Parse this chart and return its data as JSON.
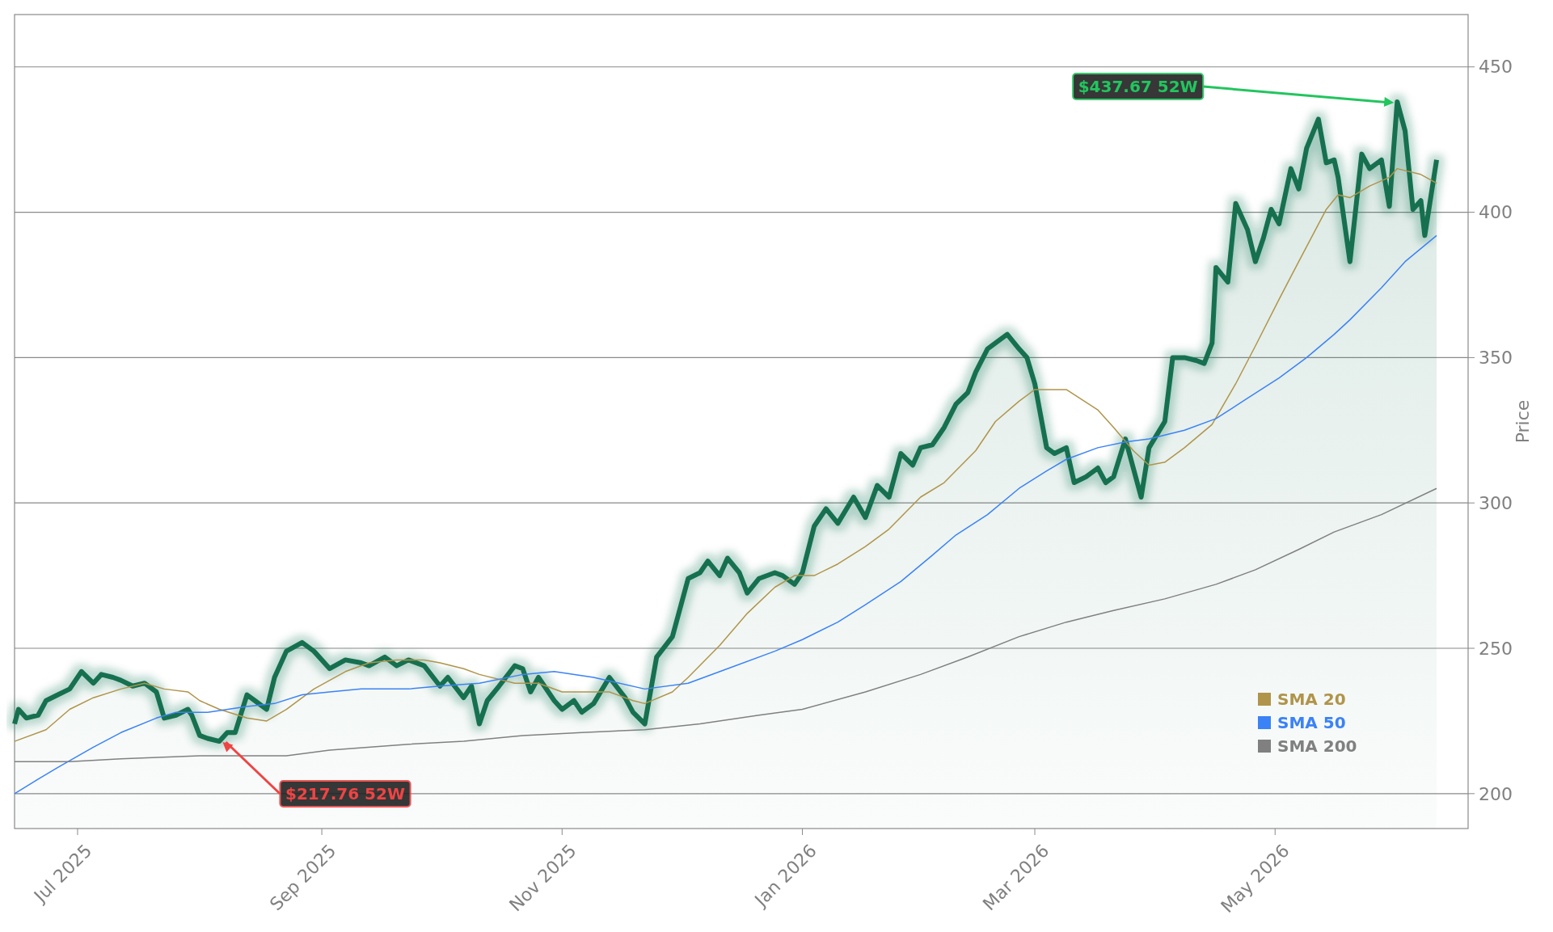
{
  "chart_data": {
    "type": "line",
    "ylabel": "Price",
    "legend": "bottom right",
    "grid": "y",
    "xlim": [
      "2025-06-15",
      "2026-06-19"
    ],
    "ylim": [
      188,
      468
    ],
    "yticks": [
      200,
      250,
      300,
      350,
      400,
      450
    ],
    "xticks": [
      {
        "value": "2025-07-01",
        "label": "Jul 2025"
      },
      {
        "value": "2025-09-01",
        "label": "Sep 2025"
      },
      {
        "value": "2025-11-01",
        "label": "Nov 2025"
      },
      {
        "value": "2026-01-01",
        "label": "Jan 2026"
      },
      {
        "value": "2026-03-01",
        "label": "Mar 2026"
      },
      {
        "value": "2026-05-01",
        "label": "May 2026"
      }
    ],
    "series": [
      {
        "type": "area",
        "color": "#16704f",
        "x": [
          "2025-06-15",
          "2025-06-16",
          "2025-06-18",
          "2025-06-21",
          "2025-06-23",
          "2025-06-26",
          "2025-06-29",
          "2025-07-02",
          "2025-07-05",
          "2025-07-07",
          "2025-07-10",
          "2025-07-12",
          "2025-07-15",
          "2025-07-18",
          "2025-07-21",
          "2025-07-23",
          "2025-07-26",
          "2025-07-29",
          "2025-07-30",
          "2025-08-01",
          "2025-08-03",
          "2025-08-06",
          "2025-08-08",
          "2025-08-10",
          "2025-08-13",
          "2025-08-15",
          "2025-08-18",
          "2025-08-20",
          "2025-08-23",
          "2025-08-27",
          "2025-08-30",
          "2025-09-03",
          "2025-09-07",
          "2025-09-11",
          "2025-09-13",
          "2025-09-17",
          "2025-09-20",
          "2025-09-23",
          "2025-09-27",
          "2025-10-01",
          "2025-10-03",
          "2025-10-07",
          "2025-10-09",
          "2025-10-11",
          "2025-10-13",
          "2025-10-16",
          "2025-10-20",
          "2025-10-22",
          "2025-10-24",
          "2025-10-26",
          "2025-10-30",
          "2025-11-01",
          "2025-11-04",
          "2025-11-06",
          "2025-11-09",
          "2025-11-13",
          "2025-11-17",
          "2025-11-19",
          "2025-11-22",
          "2025-11-25",
          "2025-11-29",
          "2025-12-01",
          "2025-12-03",
          "2025-12-06",
          "2025-12-08",
          "2025-12-11",
          "2025-12-13",
          "2025-12-16",
          "2025-12-18",
          "2025-12-21",
          "2025-12-25",
          "2025-12-27",
          "2025-12-30",
          "2026-01-01",
          "2026-01-04",
          "2026-01-07",
          "2026-01-10",
          "2026-01-14",
          "2026-01-17",
          "2026-01-20",
          "2026-01-23",
          "2026-01-26",
          "2026-01-29",
          "2026-01-31",
          "2026-02-03",
          "2026-02-06",
          "2026-02-09",
          "2026-02-12",
          "2026-02-14",
          "2026-02-17",
          "2026-02-19",
          "2026-02-22",
          "2026-02-25",
          "2026-02-27",
          "2026-03-01",
          "2026-03-04",
          "2026-03-06",
          "2026-03-09",
          "2026-03-11",
          "2026-03-14",
          "2026-03-17",
          "2026-03-19",
          "2026-03-21",
          "2026-03-24",
          "2026-03-26",
          "2026-03-28",
          "2026-03-30",
          "2026-04-03",
          "2026-04-05",
          "2026-04-08",
          "2026-04-11",
          "2026-04-13",
          "2026-04-15",
          "2026-04-16",
          "2026-04-19",
          "2026-04-21",
          "2026-04-24",
          "2026-04-26",
          "2026-04-28",
          "2026-04-30",
          "2026-05-02",
          "2026-05-05",
          "2026-05-07",
          "2026-05-09",
          "2026-05-12",
          "2026-05-14",
          "2026-05-16",
          "2026-05-17",
          "2026-05-20",
          "2026-05-23",
          "2026-05-25",
          "2026-05-28",
          "2026-05-30",
          "2026-06-01",
          "2026-06-03",
          "2026-06-05",
          "2026-06-07",
          "2026-06-08",
          "2026-06-11"
        ],
        "values": [
          224,
          229,
          226,
          227,
          232,
          234,
          236,
          242,
          238,
          241,
          240,
          239,
          237,
          238,
          235,
          226,
          227,
          229,
          227,
          220,
          219,
          218,
          221,
          221,
          234,
          232,
          229,
          240,
          249,
          252,
          249,
          243,
          246,
          245,
          244,
          247,
          244,
          246,
          244,
          237,
          240,
          233,
          237,
          224,
          232,
          237,
          244,
          243,
          235,
          240,
          232,
          229,
          232,
          228,
          231,
          240,
          233,
          228,
          224,
          247,
          254,
          264,
          274,
          276,
          280,
          275,
          281,
          276,
          269,
          274,
          276,
          275,
          272,
          276,
          292,
          298,
          293,
          302,
          295,
          306,
          302,
          317,
          313,
          319,
          320,
          326,
          334,
          338,
          345,
          353,
          355,
          358,
          353,
          350,
          341,
          319,
          317,
          319,
          307,
          309,
          312,
          307,
          309,
          322,
          312,
          302,
          319,
          328,
          350,
          350,
          349,
          348,
          355,
          381,
          376,
          403,
          394,
          383,
          391,
          401,
          396,
          415,
          408,
          422,
          432,
          417,
          418,
          412,
          383,
          420,
          415,
          418,
          402,
          438,
          428,
          401,
          404,
          392,
          418
        ]
      },
      {
        "name": "SMA 20",
        "color": "#b0944a",
        "x": [
          "2025-06-15",
          "2025-06-23",
          "2025-06-29",
          "2025-07-05",
          "2025-07-12",
          "2025-07-18",
          "2025-07-23",
          "2025-07-29",
          "2025-08-01",
          "2025-08-06",
          "2025-08-13",
          "2025-08-18",
          "2025-08-23",
          "2025-08-30",
          "2025-09-07",
          "2025-09-13",
          "2025-09-20",
          "2025-09-27",
          "2025-10-01",
          "2025-10-07",
          "2025-10-11",
          "2025-10-20",
          "2025-10-26",
          "2025-11-01",
          "2025-11-13",
          "2025-11-19",
          "2025-11-22",
          "2025-11-29",
          "2025-12-03",
          "2025-12-11",
          "2025-12-18",
          "2025-12-25",
          "2025-12-30",
          "2026-01-04",
          "2026-01-10",
          "2026-01-17",
          "2026-01-23",
          "2026-01-31",
          "2026-02-06",
          "2026-02-14",
          "2026-02-19",
          "2026-02-25",
          "2026-03-01",
          "2026-03-09",
          "2026-03-17",
          "2026-03-21",
          "2026-03-26",
          "2026-03-30",
          "2026-04-03",
          "2026-04-08",
          "2026-04-15",
          "2026-04-21",
          "2026-04-26",
          "2026-05-02",
          "2026-05-07",
          "2026-05-14",
          "2026-05-17",
          "2026-05-20",
          "2026-05-25",
          "2026-05-30",
          "2026-06-01",
          "2026-06-07",
          "2026-06-11"
        ],
        "values": [
          218,
          222,
          229,
          233,
          236,
          238,
          236,
          235,
          232,
          229,
          226,
          225,
          229,
          236,
          242,
          245,
          246,
          246,
          245,
          243,
          241,
          238,
          238,
          235,
          235,
          232,
          231,
          235,
          240,
          251,
          262,
          271,
          275,
          275,
          279,
          285,
          291,
          302,
          307,
          318,
          328,
          335,
          339,
          339,
          332,
          326,
          318,
          313,
          314,
          319,
          327,
          341,
          354,
          370,
          383,
          401,
          406,
          405,
          409,
          412,
          415,
          413,
          410
        ]
      },
      {
        "name": "SMA 50",
        "color": "#3b82f6",
        "x": [
          "2025-06-15",
          "2025-06-21",
          "2025-06-26",
          "2025-07-05",
          "2025-07-12",
          "2025-07-21",
          "2025-07-26",
          "2025-08-03",
          "2025-08-13",
          "2025-08-20",
          "2025-08-27",
          "2025-09-03",
          "2025-09-11",
          "2025-09-23",
          "2025-10-01",
          "2025-10-11",
          "2025-10-22",
          "2025-10-30",
          "2025-11-09",
          "2025-11-22",
          "2025-12-03",
          "2025-12-13",
          "2025-12-25",
          "2026-01-01",
          "2026-01-10",
          "2026-01-17",
          "2026-01-26",
          "2026-02-03",
          "2026-02-09",
          "2026-02-17",
          "2026-02-25",
          "2026-03-04",
          "2026-03-09",
          "2026-03-17",
          "2026-03-24",
          "2026-03-30",
          "2026-04-08",
          "2026-04-16",
          "2026-04-24",
          "2026-05-02",
          "2026-05-09",
          "2026-05-16",
          "2026-05-20",
          "2026-05-28",
          "2026-06-03",
          "2026-06-11"
        ],
        "values": [
          200,
          205,
          209,
          216,
          221,
          226,
          228,
          228,
          230,
          231,
          234,
          235,
          236,
          236,
          237,
          238,
          241,
          242,
          240,
          236,
          238,
          243,
          249,
          253,
          259,
          265,
          273,
          282,
          289,
          296,
          305,
          311,
          315,
          319,
          321,
          322,
          325,
          329,
          336,
          343,
          350,
          358,
          363,
          374,
          383,
          392
        ]
      },
      {
        "name": "SMA 200",
        "color": "#808080",
        "x": [
          "2025-06-15",
          "2025-06-29",
          "2025-07-12",
          "2025-08-01",
          "2025-08-23",
          "2025-09-03",
          "2025-09-23",
          "2025-10-07",
          "2025-10-22",
          "2025-11-06",
          "2025-11-22",
          "2025-12-06",
          "2025-12-21",
          "2026-01-01",
          "2026-01-17",
          "2026-01-31",
          "2026-02-12",
          "2026-02-25",
          "2026-03-09",
          "2026-03-21",
          "2026-04-03",
          "2026-04-16",
          "2026-04-26",
          "2026-05-07",
          "2026-05-16",
          "2026-05-28",
          "2026-06-11"
        ],
        "values": [
          211,
          211,
          212,
          213,
          213,
          215,
          217,
          218,
          220,
          221,
          222,
          224,
          227,
          229,
          235,
          241,
          247,
          254,
          259,
          263,
          267,
          272,
          277,
          284,
          290,
          296,
          305
        ]
      }
    ],
    "annotations": [
      {
        "text": "$437.67 52W",
        "x": "2026-06-01",
        "y": 437.67
      },
      {
        "text": "$217.76 52W",
        "x": "2025-08-06",
        "y": 217.76
      }
    ]
  }
}
